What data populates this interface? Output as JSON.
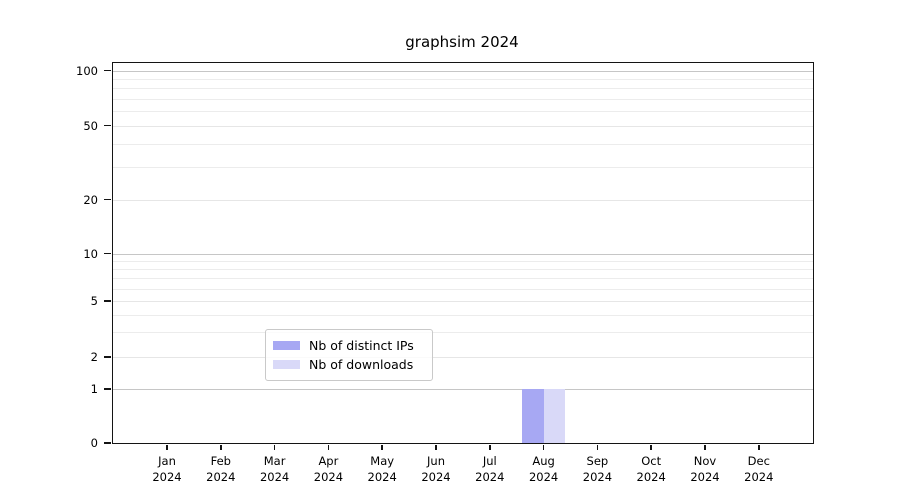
{
  "chart_data": {
    "type": "bar",
    "title": "graphsim 2024",
    "categories": [
      "Jan 2024",
      "Feb 2024",
      "Mar 2024",
      "Apr 2024",
      "May 2024",
      "Jun 2024",
      "Jul 2024",
      "Aug 2024",
      "Sep 2024",
      "Oct 2024",
      "Nov 2024",
      "Dec 2024"
    ],
    "series": [
      {
        "name": "Nb of distinct IPs",
        "color": "#a7a8f3",
        "values": [
          0,
          0,
          0,
          0,
          0,
          0,
          0,
          1,
          0,
          0,
          0,
          0
        ]
      },
      {
        "name": "Nb of downloads",
        "color": "#d9d9f8",
        "values": [
          0,
          0,
          0,
          0,
          0,
          0,
          0,
          1,
          0,
          0,
          0,
          0
        ]
      }
    ],
    "y_ticks": [
      0,
      1,
      2,
      5,
      10,
      20,
      50,
      100
    ],
    "ylim": [
      0,
      110
    ],
    "y_scale": "log-like",
    "xlabel": "",
    "ylabel": "",
    "grid": "horizontal-gridlines",
    "legend_position": "bottom-center-inside",
    "colors": {
      "major_gridline": "#c6c6c6",
      "minor_gridline": "#ececec",
      "labeled_light_gridline": "#e6e6e6",
      "axis_spine": "#141414",
      "text": "#000000"
    }
  }
}
